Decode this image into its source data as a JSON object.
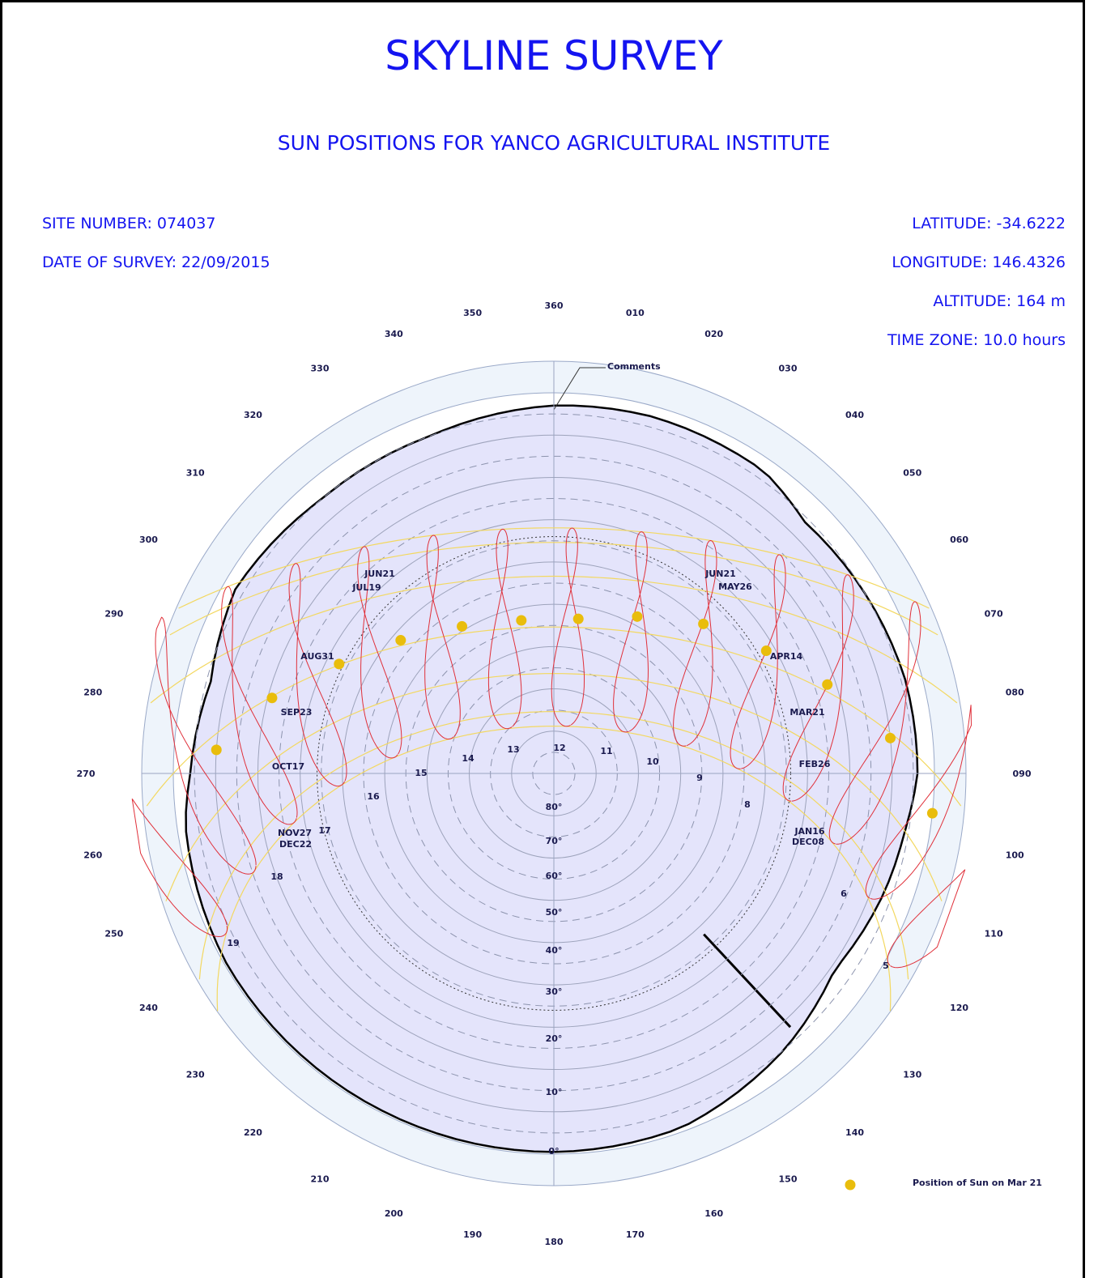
{
  "header": {
    "title": "SKYLINE SURVEY",
    "subtitle": "SUN POSITIONS FOR YANCO AGRICULTURAL INSTITUTE"
  },
  "site": {
    "site_number": "SITE NUMBER: 074037",
    "date_of_survey": "DATE OF SURVEY: 22/09/2015",
    "latitude": "LATITUDE: -34.6222",
    "longitude": "LONGITUDE: 146.4326",
    "altitude": "ALTITUDE: 164 m",
    "time_zone": "TIME ZONE: 10.0 hours"
  },
  "colors": {
    "title": "#1414f0",
    "sky_fill": "#e4e4fb",
    "outer_ring": "#eef4fb",
    "analemma": "#e0303a",
    "date_arc": "#f3d860",
    "sun_marker": "#e9bd0c",
    "skyline": "#000000"
  },
  "chart_data": {
    "type": "polar sun path diagram",
    "azimuth_labels": [
      "360",
      "010",
      "020",
      "030",
      "040",
      "050",
      "060",
      "070",
      "080",
      "090",
      "100",
      "110",
      "120",
      "130",
      "140",
      "150",
      "160",
      "170",
      "180",
      "190",
      "200",
      "210",
      "220",
      "230",
      "240",
      "250",
      "260",
      "270",
      "280",
      "290",
      "300",
      "310",
      "320",
      "330",
      "340",
      "350"
    ],
    "elevation_labels": [
      "0°",
      "10°",
      "20°",
      "30°",
      "40°",
      "50°",
      "60°",
      "70°",
      "80°"
    ],
    "hour_labels": [
      "5",
      "6",
      "8",
      "9",
      "10",
      "11",
      "12",
      "13",
      "14",
      "15",
      "16",
      "17",
      "18",
      "19"
    ],
    "date_labels": [
      "JUN21",
      "JUL19",
      "JUN21",
      "MAY26",
      "AUG31",
      "APR14",
      "SEP23",
      "MAR21",
      "OCT17",
      "FEB26",
      "NOV27",
      "DEC22",
      "JAN16",
      "DEC08"
    ],
    "annotation": "Comments",
    "legend": {
      "label": "Position of Sun on Mar 21",
      "placement": "bottom-right"
    },
    "mar21_sun_positions": [
      {
        "azimuth": 96,
        "elevation": 0
      },
      {
        "azimuth": 84,
        "elevation": 10
      },
      {
        "azimuth": 72,
        "elevation": 22
      },
      {
        "azimuth": 60,
        "elevation": 32
      },
      {
        "azimuth": 45,
        "elevation": 40
      },
      {
        "azimuth": 28,
        "elevation": 48
      },
      {
        "azimuth": 9,
        "elevation": 53
      },
      {
        "azimuth": 348,
        "elevation": 53
      },
      {
        "azimuth": 328,
        "elevation": 49
      },
      {
        "azimuth": 311,
        "elevation": 42
      },
      {
        "azimuth": 297,
        "elevation": 33
      },
      {
        "azimuth": 285,
        "elevation": 21
      },
      {
        "azimuth": 274,
        "elevation": 10
      }
    ],
    "skyline_horizon": [
      {
        "azimuth": 0,
        "elevation": 3
      },
      {
        "azimuth": 15,
        "elevation": 2.5
      },
      {
        "azimuth": 35,
        "elevation": 3
      },
      {
        "azimuth": 45,
        "elevation": 6
      },
      {
        "azimuth": 60,
        "elevation": 5
      },
      {
        "azimuth": 75,
        "elevation": 4
      },
      {
        "azimuth": 90,
        "elevation": 4
      },
      {
        "azimuth": 100,
        "elevation": 6
      },
      {
        "azimuth": 110,
        "elevation": 7
      },
      {
        "azimuth": 125,
        "elevation": 9
      },
      {
        "azimuth": 140,
        "elevation": 5
      },
      {
        "azimuth": 160,
        "elevation": 1
      },
      {
        "azimuth": 180,
        "elevation": 0.5
      },
      {
        "azimuth": 210,
        "elevation": 0.5
      },
      {
        "azimuth": 240,
        "elevation": 0.5
      },
      {
        "azimuth": 262,
        "elevation": 2
      },
      {
        "azimuth": 270,
        "elevation": 4
      },
      {
        "azimuth": 285,
        "elevation": 6
      },
      {
        "azimuth": 300,
        "elevation": 3
      },
      {
        "azimuth": 320,
        "elevation": 5
      },
      {
        "azimuth": 340,
        "elevation": 5
      },
      {
        "azimuth": 360,
        "elevation": 3
      }
    ]
  }
}
